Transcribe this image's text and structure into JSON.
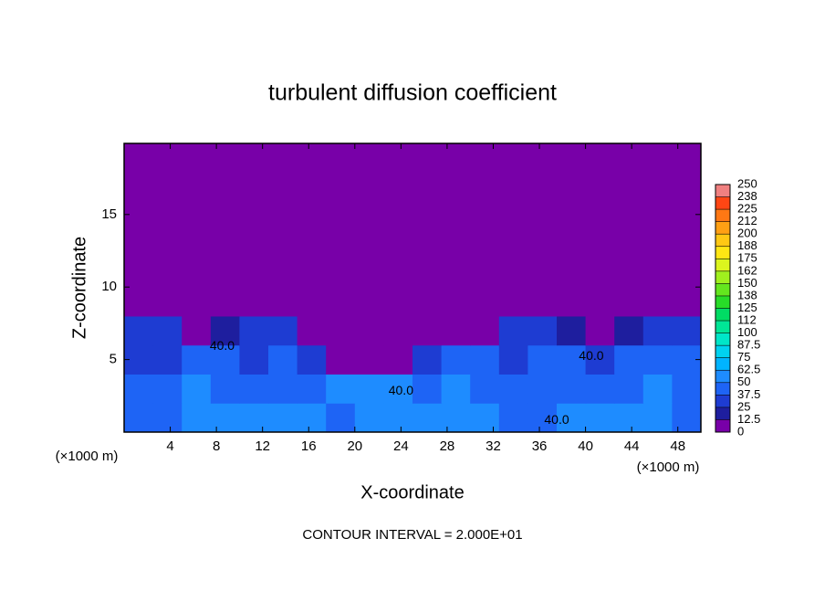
{
  "chart_data": {
    "type": "heatmap",
    "title": "turbulent diffusion coefficient",
    "xlabel": "X-coordinate",
    "ylabel": "Z-coordinate",
    "xunit": "(×1000 m)",
    "yunit": "(×1000 m)",
    "footnote": "CONTOUR INTERVAL = 2.000E+01",
    "xlim": [
      0,
      50
    ],
    "ylim": [
      0,
      19.9
    ],
    "xticks": [
      4,
      8,
      12,
      16,
      20,
      24,
      28,
      32,
      36,
      40,
      44,
      48
    ],
    "yticks": [
      5,
      10,
      15
    ],
    "x_edges": [
      0,
      2.5,
      5,
      7.5,
      10,
      12.5,
      15,
      17.5,
      20,
      22.5,
      25,
      27.5,
      30,
      32.5,
      35,
      37.5,
      40,
      42.5,
      45,
      47.5,
      50
    ],
    "z_edges": [
      0,
      2,
      4,
      6,
      8,
      19.9
    ],
    "values": [
      [
        45,
        45,
        60,
        55,
        50,
        55,
        50,
        45,
        55,
        60,
        55,
        55,
        50,
        45,
        45,
        55,
        60,
        50,
        55,
        45
      ],
      [
        40,
        40,
        50,
        45,
        40,
        45,
        40,
        50,
        55,
        50,
        45,
        50,
        45,
        40,
        40,
        40,
        45,
        45,
        50,
        45
      ],
      [
        35,
        35,
        45,
        40,
        35,
        40,
        30,
        5,
        10,
        10,
        30,
        40,
        40,
        35,
        40,
        40,
        35,
        40,
        45,
        40
      ],
      [
        30,
        30,
        10,
        15,
        25,
        30,
        5,
        0,
        0,
        0,
        5,
        0,
        5,
        25,
        30,
        20,
        5,
        15,
        25,
        30
      ],
      [
        0,
        0,
        0,
        0,
        0,
        0,
        0,
        0,
        0,
        0,
        0,
        0,
        0,
        0,
        0,
        0,
        0,
        0,
        0,
        0
      ]
    ],
    "contour_labels": [
      {
        "value": 40,
        "label": "40.0",
        "x": 8.5,
        "z": 5.9
      },
      {
        "value": 40,
        "label": "40.0",
        "x": 24,
        "z": 2.8
      },
      {
        "value": 40,
        "label": "40.0",
        "x": 37.5,
        "z": 0.8
      },
      {
        "value": 40,
        "label": "40.0",
        "x": 40.5,
        "z": 5.2
      }
    ],
    "colorbar": {
      "levels": [
        0,
        12.5,
        25,
        37.5,
        50,
        62.5,
        75,
        87.5,
        100,
        {
          "value": 112.5,
          "label": "112"
        },
        125,
        {
          "value": 137.5,
          "label": "138"
        },
        150,
        {
          "value": 162.5,
          "label": "162"
        },
        175,
        {
          "value": 187.5,
          "label": "188"
        },
        200,
        {
          "value": 212.5,
          "label": "212"
        },
        225,
        {
          "value": 237.5,
          "label": "238"
        },
        250
      ],
      "colors": [
        "#7800a8",
        "#1e1e9e",
        "#1e3cd2",
        "#1e64f5",
        "#1e8cff",
        "#00b4ff",
        "#00d2f0",
        "#00e6c8",
        "#00e696",
        "#00dc64",
        "#28dc28",
        "#64e61e",
        "#a0f01e",
        "#dcf51e",
        "#ffe614",
        "#ffc814",
        "#ffa014",
        "#ff7814",
        "#ff4614",
        "#f08080"
      ]
    }
  }
}
